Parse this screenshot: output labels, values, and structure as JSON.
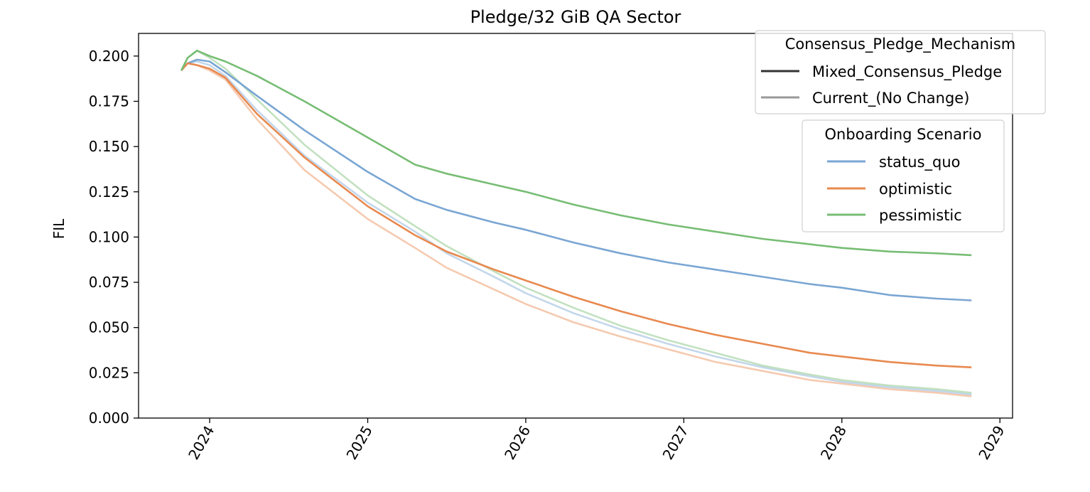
{
  "chart_data": {
    "type": "line",
    "title": "Pledge/32 GiB QA Sector",
    "xlabel": "",
    "ylabel": "FIL",
    "x_ticks": [
      "2024",
      "2025",
      "2026",
      "2027",
      "2028",
      "2029"
    ],
    "y_ticks": [
      "0.000",
      "0.025",
      "0.050",
      "0.075",
      "0.100",
      "0.125",
      "0.150",
      "0.175",
      "0.200"
    ],
    "xlim": [
      2023.55,
      2029.08
    ],
    "ylim": [
      0.0,
      0.2125
    ],
    "grid": false,
    "legends": [
      {
        "title": "Consensus_Pledge_Mechanism",
        "placement": "top-right",
        "entries": [
          {
            "label": "Mixed_Consensus_Pledge",
            "color": "#333333"
          },
          {
            "label": "Current_(No Change)",
            "color": "#999999"
          }
        ]
      },
      {
        "title": "Onboarding Scenario",
        "placement": "upper-right",
        "entries": [
          {
            "label": "status_quo",
            "color": "#7aa6d3"
          },
          {
            "label": "optimistic",
            "color": "#e8894f"
          },
          {
            "label": "pessimistic",
            "color": "#77bd74"
          }
        ]
      }
    ],
    "series": [
      {
        "scenario": "status_quo",
        "mechanism": "Mixed_Consensus_Pledge",
        "color": "#7aa6d3",
        "opacity": 1.0,
        "x": [
          2023.82,
          2023.86,
          2023.92,
          2024.0,
          2024.1,
          2024.3,
          2024.6,
          2025.0,
          2025.3,
          2025.5,
          2025.8,
          2026.0,
          2026.3,
          2026.6,
          2026.9,
          2027.2,
          2027.5,
          2027.8,
          2028.0,
          2028.3,
          2028.6,
          2028.82
        ],
        "y": [
          0.192,
          0.196,
          0.198,
          0.197,
          0.191,
          0.178,
          0.159,
          0.136,
          0.121,
          0.115,
          0.108,
          0.104,
          0.097,
          0.091,
          0.086,
          0.082,
          0.078,
          0.074,
          0.072,
          0.068,
          0.066,
          0.065
        ]
      },
      {
        "scenario": "optimistic",
        "mechanism": "Mixed_Consensus_Pledge",
        "color": "#e8894f",
        "opacity": 1.0,
        "x": [
          2023.82,
          2023.86,
          2023.92,
          2024.0,
          2024.1,
          2024.3,
          2024.6,
          2025.0,
          2025.3,
          2025.5,
          2025.8,
          2026.0,
          2026.3,
          2026.6,
          2026.9,
          2027.2,
          2027.5,
          2027.8,
          2028.0,
          2028.3,
          2028.6,
          2028.82
        ],
        "y": [
          0.192,
          0.196,
          0.195,
          0.193,
          0.188,
          0.168,
          0.144,
          0.117,
          0.101,
          0.092,
          0.082,
          0.076,
          0.067,
          0.059,
          0.052,
          0.046,
          0.041,
          0.036,
          0.034,
          0.031,
          0.029,
          0.028
        ]
      },
      {
        "scenario": "pessimistic",
        "mechanism": "Mixed_Consensus_Pledge",
        "color": "#77bd74",
        "opacity": 1.0,
        "x": [
          2023.82,
          2023.86,
          2023.92,
          2024.0,
          2024.1,
          2024.3,
          2024.6,
          2025.0,
          2025.3,
          2025.5,
          2025.8,
          2026.0,
          2026.3,
          2026.6,
          2026.9,
          2027.2,
          2027.5,
          2027.8,
          2028.0,
          2028.3,
          2028.6,
          2028.82
        ],
        "y": [
          0.192,
          0.199,
          0.203,
          0.2,
          0.197,
          0.189,
          0.175,
          0.155,
          0.14,
          0.135,
          0.129,
          0.125,
          0.118,
          0.112,
          0.107,
          0.103,
          0.099,
          0.096,
          0.094,
          0.092,
          0.091,
          0.09
        ]
      },
      {
        "scenario": "status_quo",
        "mechanism": "Current_(No Change)",
        "color": "#7aa6d3",
        "opacity": 0.45,
        "x": [
          2023.82,
          2023.86,
          2023.92,
          2024.0,
          2024.1,
          2024.3,
          2024.6,
          2025.0,
          2025.3,
          2025.5,
          2025.8,
          2026.0,
          2026.3,
          2026.6,
          2026.9,
          2027.2,
          2027.5,
          2027.8,
          2028.0,
          2028.3,
          2028.6,
          2028.82
        ],
        "y": [
          0.192,
          0.196,
          0.197,
          0.195,
          0.189,
          0.17,
          0.145,
          0.119,
          0.103,
          0.091,
          0.078,
          0.069,
          0.058,
          0.049,
          0.041,
          0.034,
          0.028,
          0.023,
          0.02,
          0.017,
          0.015,
          0.013
        ]
      },
      {
        "scenario": "optimistic",
        "mechanism": "Current_(No Change)",
        "color": "#e8894f",
        "opacity": 0.45,
        "x": [
          2023.82,
          2023.86,
          2023.92,
          2024.0,
          2024.1,
          2024.3,
          2024.6,
          2025.0,
          2025.3,
          2025.5,
          2025.8,
          2026.0,
          2026.3,
          2026.6,
          2026.9,
          2027.2,
          2027.5,
          2027.8,
          2028.0,
          2028.3,
          2028.6,
          2028.82
        ],
        "y": [
          0.192,
          0.196,
          0.195,
          0.192,
          0.187,
          0.165,
          0.137,
          0.11,
          0.094,
          0.083,
          0.071,
          0.063,
          0.053,
          0.045,
          0.038,
          0.031,
          0.026,
          0.021,
          0.019,
          0.016,
          0.014,
          0.012
        ]
      },
      {
        "scenario": "pessimistic",
        "mechanism": "Current_(No Change)",
        "color": "#77bd74",
        "opacity": 0.45,
        "x": [
          2023.82,
          2023.86,
          2023.92,
          2024.0,
          2024.1,
          2024.3,
          2024.6,
          2025.0,
          2025.3,
          2025.5,
          2025.8,
          2026.0,
          2026.3,
          2026.6,
          2026.9,
          2027.2,
          2027.5,
          2027.8,
          2028.0,
          2028.3,
          2028.6,
          2028.82
        ],
        "y": [
          0.192,
          0.199,
          0.203,
          0.199,
          0.193,
          0.176,
          0.151,
          0.123,
          0.106,
          0.095,
          0.081,
          0.072,
          0.061,
          0.051,
          0.043,
          0.036,
          0.029,
          0.024,
          0.021,
          0.018,
          0.016,
          0.014
        ]
      }
    ]
  }
}
